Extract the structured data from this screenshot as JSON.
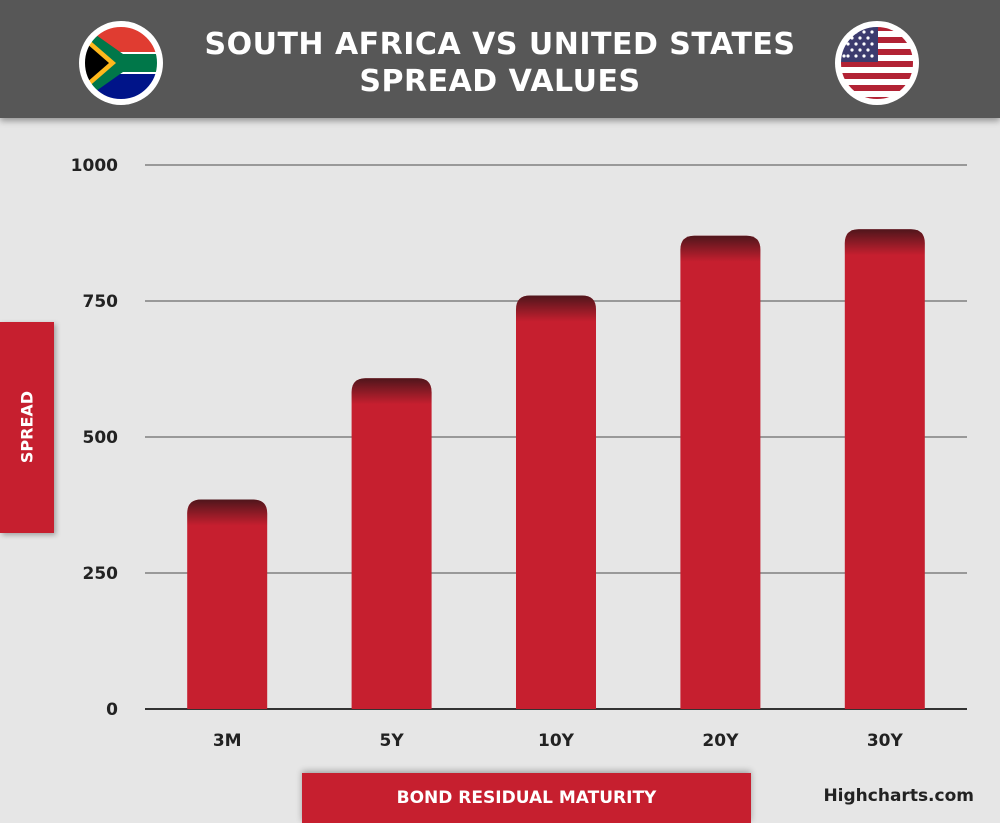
{
  "header": {
    "title_line1": "SOUTH AFRICA VS UNITED STATES",
    "title_line2": "SPREAD VALUES"
  },
  "flags": {
    "left": "south-africa-flag",
    "right": "united-states-flag"
  },
  "credit": "Highcharts.com",
  "colors": {
    "bar": "#c61f2f",
    "header_bg": "#575757",
    "background": "#e6e6e6",
    "grid": "#999999"
  },
  "chart_data": {
    "type": "bar",
    "title": "SOUTH AFRICA VS UNITED STATES SPREAD VALUES",
    "xlabel": "BOND RESIDUAL MATURITY",
    "ylabel": "SPREAD",
    "categories": [
      "3M",
      "5Y",
      "10Y",
      "20Y",
      "30Y"
    ],
    "values": [
      385,
      608,
      760,
      870,
      882
    ],
    "ylim": [
      0,
      1000
    ],
    "yticks": [
      0,
      250,
      500,
      750,
      1000
    ],
    "grid": true,
    "legend": "none"
  }
}
